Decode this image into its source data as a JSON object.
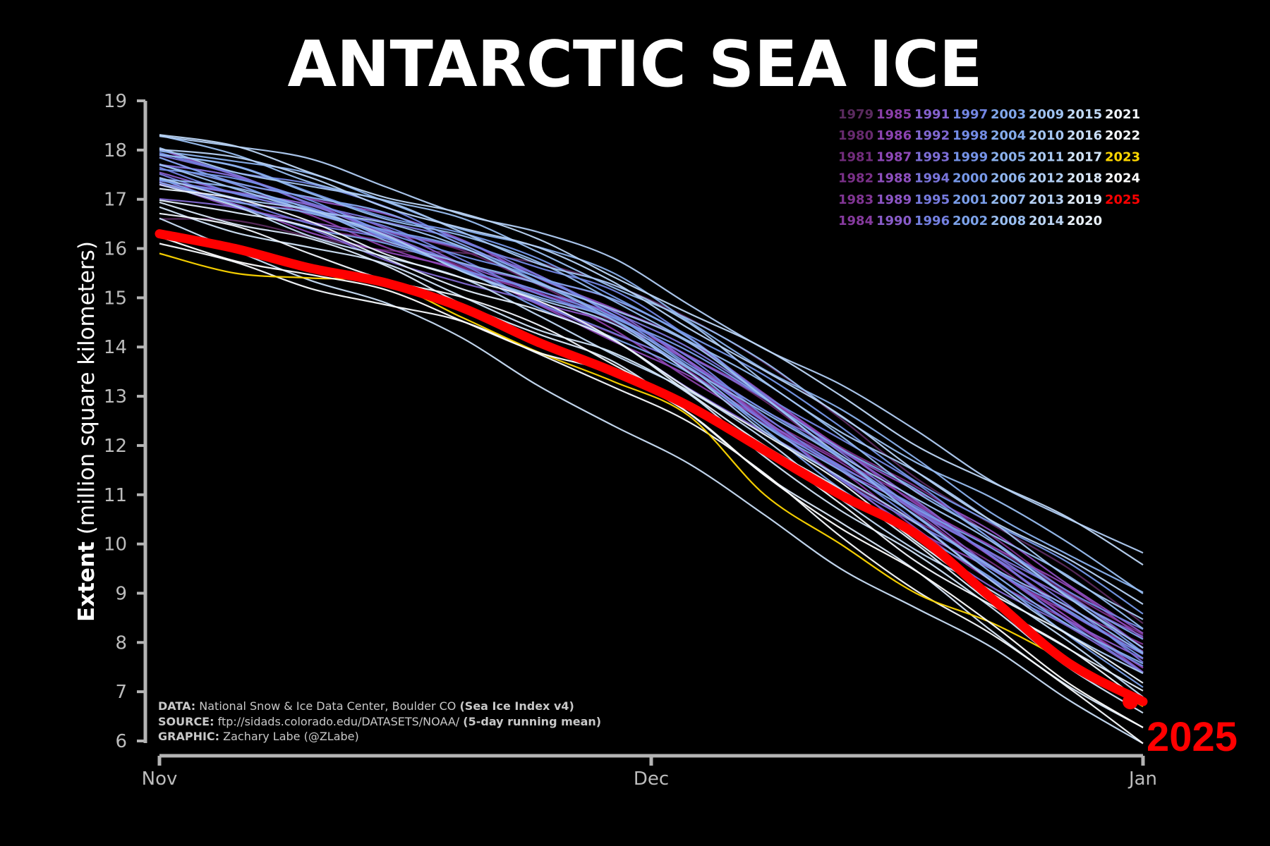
{
  "title": "ANTARCTIC SEA ICE",
  "chart_data": {
    "type": "line",
    "x_labels": [
      "Nov",
      "Dec",
      "Jan"
    ],
    "y_axis": {
      "label_bold": "Extent",
      "label_rest": "(million square kilometers)",
      "ticks": [
        6,
        7,
        8,
        9,
        10,
        11,
        12,
        13,
        14,
        15,
        16,
        17,
        18,
        19
      ],
      "ylim": [
        6,
        19
      ]
    },
    "grid": false,
    "legend_position": "top-right",
    "legend_columns": [
      [
        "1979",
        "1980",
        "1981",
        "1982",
        "1983",
        "1984"
      ],
      [
        "1985",
        "1986",
        "1987",
        "1988",
        "1989",
        "1990"
      ],
      [
        "1991",
        "1992",
        "1993",
        "1994",
        "1995",
        "1996"
      ],
      [
        "1997",
        "1998",
        "1999",
        "2000",
        "2001",
        "2002"
      ],
      [
        "2003",
        "2004",
        "2005",
        "2006",
        "2007",
        "2008"
      ],
      [
        "2009",
        "2010",
        "2011",
        "2012",
        "2013",
        "2014"
      ],
      [
        "2015",
        "2016",
        "2017",
        "2018",
        "2019",
        "2020"
      ],
      [
        "2021",
        "2022",
        "2023",
        "2024",
        "2025"
      ]
    ],
    "legend_colors": {
      "1979": "#5a2a5e",
      "1980": "#672a6e",
      "1981": "#722c7c",
      "1982": "#7a3088",
      "1983": "#813594",
      "1984": "#863a9e",
      "1985": "#8a3ea8",
      "1986": "#8c43b1",
      "1987": "#8e48b8",
      "1988": "#8e4fbf",
      "1989": "#8c55c5",
      "1990": "#895cca",
      "1991": "#8562ce",
      "1992": "#8168d2",
      "1993": "#7d6ed6",
      "1994": "#7974da",
      "1995": "#767ade",
      "1996": "#7480e1",
      "1997": "#7386e3",
      "1998": "#738ce5",
      "1999": "#7492e7",
      "2000": "#7698e8",
      "2001": "#799de9",
      "2002": "#7ca2ea",
      "2003": "#80a7eb",
      "2004": "#85acec",
      "2005": "#8ab1ed",
      "2006": "#8fb5ee",
      "2007": "#94baef",
      "2008": "#99bef0",
      "2009": "#9fc2f1",
      "2010": "#a5c6f2",
      "2011": "#abcaf3",
      "2012": "#b1cef4",
      "2013": "#b7d2f5",
      "2014": "#bdd6f6",
      "2015": "#c3dbf7",
      "2016": "#cadff8",
      "2017": "#d2e5f9",
      "2018": "#dbe9fa",
      "2019": "#e3eefb",
      "2020": "#ebf3fc",
      "2021": "#f2f7fd",
      "2022": "#f8fbfe",
      "2023": "#ffd700",
      "2024": "#ffffff",
      "2025": "#ff0000"
    },
    "series": [
      {
        "name": "1979",
        "values": [
          16.6,
          15.2,
          8.4
        ]
      },
      {
        "name": "1980",
        "values": [
          17.6,
          14.3,
          8.0
        ]
      },
      {
        "name": "1981",
        "values": [
          17.3,
          14.0,
          7.6
        ]
      },
      {
        "name": "1982",
        "values": [
          17.8,
          14.6,
          8.2
        ]
      },
      {
        "name": "1983",
        "values": [
          17.4,
          14.2,
          7.9
        ]
      },
      {
        "name": "1984",
        "values": [
          17.5,
          14.1,
          7.7
        ]
      },
      {
        "name": "1985",
        "values": [
          17.4,
          14.0,
          7.4
        ]
      },
      {
        "name": "1986",
        "values": [
          17.7,
          14.4,
          8.1
        ]
      },
      {
        "name": "1987",
        "values": [
          17.2,
          13.9,
          7.5
        ]
      },
      {
        "name": "1988",
        "values": [
          17.9,
          14.5,
          8.3
        ]
      },
      {
        "name": "1989",
        "values": [
          17.3,
          14.1,
          7.8
        ]
      },
      {
        "name": "1990",
        "values": [
          17.6,
          14.2,
          7.6
        ]
      },
      {
        "name": "1991",
        "values": [
          17.5,
          14.3,
          8.0
        ]
      },
      {
        "name": "1992",
        "values": [
          17.1,
          13.8,
          7.3
        ]
      },
      {
        "name": "1993",
        "values": [
          17.7,
          14.4,
          7.9
        ]
      },
      {
        "name": "1994",
        "values": [
          17.8,
          14.5,
          7.7
        ]
      },
      {
        "name": "1995",
        "values": [
          17.4,
          14.0,
          7.5
        ]
      },
      {
        "name": "1996",
        "values": [
          17.6,
          14.2,
          7.8
        ]
      },
      {
        "name": "1997",
        "values": [
          18.0,
          14.7,
          8.2
        ]
      },
      {
        "name": "1998",
        "values": [
          17.5,
          14.1,
          7.4
        ]
      },
      {
        "name": "1999",
        "values": [
          17.7,
          14.3,
          7.6
        ]
      },
      {
        "name": "2000",
        "values": [
          17.9,
          14.8,
          8.6
        ]
      },
      {
        "name": "2001",
        "values": [
          17.6,
          14.4,
          7.9
        ]
      },
      {
        "name": "2002",
        "values": [
          17.3,
          13.9,
          7.2
        ]
      },
      {
        "name": "2003",
        "values": [
          17.8,
          14.6,
          8.1
        ]
      },
      {
        "name": "2004",
        "values": [
          17.4,
          14.1,
          7.5
        ]
      },
      {
        "name": "2005",
        "values": [
          18.1,
          15.1,
          8.9
        ]
      },
      {
        "name": "2006",
        "values": [
          17.5,
          14.2,
          7.7
        ]
      },
      {
        "name": "2007",
        "values": [
          17.9,
          14.7,
          8.3
        ]
      },
      {
        "name": "2008",
        "values": [
          18.2,
          15.0,
          9.1
        ]
      },
      {
        "name": "2009",
        "values": [
          17.6,
          14.5,
          8.0
        ]
      },
      {
        "name": "2010",
        "values": [
          18.0,
          14.9,
          8.5
        ]
      },
      {
        "name": "2011",
        "values": [
          17.5,
          14.0,
          7.3
        ]
      },
      {
        "name": "2012",
        "values": [
          18.4,
          15.4,
          9.7
        ]
      },
      {
        "name": "2013",
        "values": [
          18.1,
          15.0,
          8.7
        ]
      },
      {
        "name": "2014",
        "values": [
          18.3,
          15.2,
          9.6
        ]
      },
      {
        "name": "2015",
        "values": [
          17.2,
          13.6,
          7.0
        ]
      },
      {
        "name": "2016",
        "values": [
          16.5,
          12.0,
          6.0
        ]
      },
      {
        "name": "2017",
        "values": [
          16.8,
          13.5,
          6.6
        ]
      },
      {
        "name": "2018",
        "values": [
          17.0,
          13.2,
          6.2
        ]
      },
      {
        "name": "2019",
        "values": [
          17.1,
          13.7,
          6.9
        ]
      },
      {
        "name": "2020",
        "values": [
          17.3,
          13.8,
          7.1
        ]
      },
      {
        "name": "2021",
        "values": [
          16.7,
          13.4,
          6.8
        ]
      },
      {
        "name": "2022",
        "values": [
          16.0,
          13.0,
          6.0
        ]
      },
      {
        "name": "2023",
        "values": [
          15.9,
          12.6,
          6.7
        ]
      },
      {
        "name": "2024",
        "values": [
          16.2,
          13.1,
          6.3
        ]
      },
      {
        "name": "2025",
        "values": [
          16.3,
          12.8,
          6.8
        ]
      }
    ],
    "highlight": {
      "name": "2025",
      "label": "2025",
      "color": "#ff0000",
      "last_value": 6.8
    },
    "series_2023_detail": [
      15.9,
      15.5,
      15.4,
      15.3,
      14.6,
      13.9,
      13.3,
      12.6,
      11.0,
      10.0,
      9.0,
      8.4,
      7.6,
      6.7
    ],
    "series_2025_detail": [
      16.3,
      16.0,
      15.6,
      15.3,
      14.8,
      14.1,
      13.5,
      12.8,
      11.9,
      11.0,
      10.2,
      8.9,
      7.6,
      6.8
    ]
  },
  "credits": {
    "data_label": "DATA:",
    "data_text": "National Snow & Ice Data Center, Boulder CO",
    "data_bold": "(Sea Ice Index v4)",
    "source_label": "SOURCE:",
    "source_text": "ftp://sidads.colorado.edu/DATASETS/NOAA/",
    "source_bold": "(5-day running mean)",
    "graphic_label": "GRAPHIC:",
    "graphic_text": "Zachary Labe (@ZLabe)"
  }
}
